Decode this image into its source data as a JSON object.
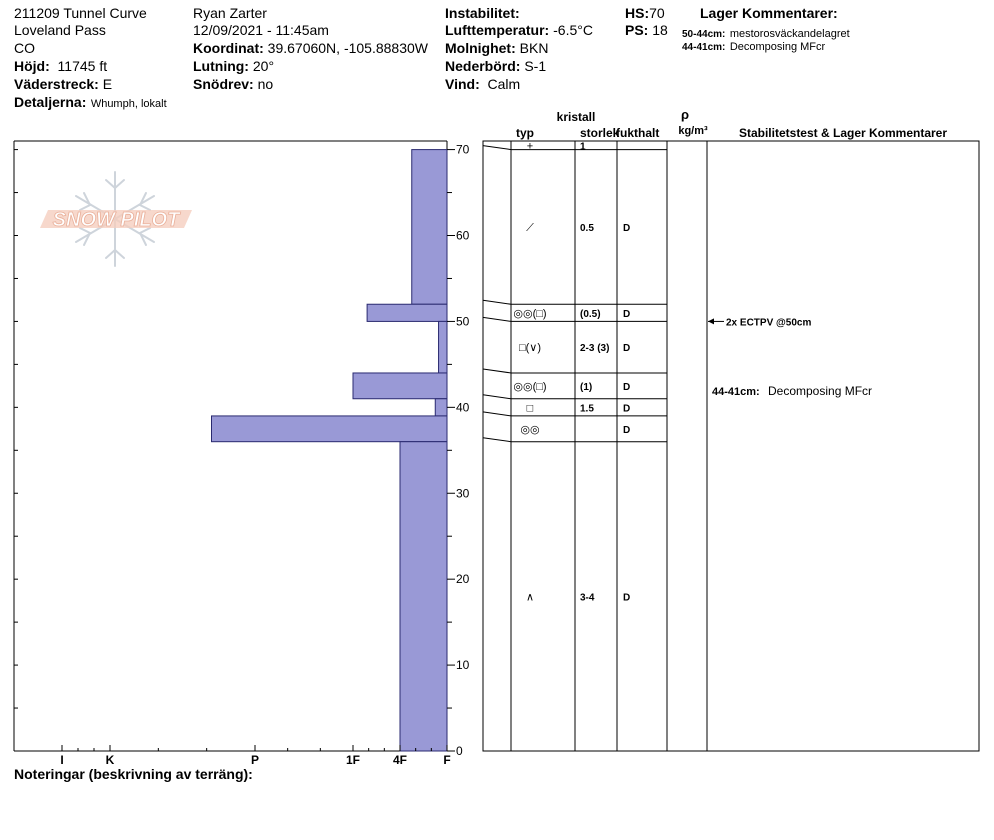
{
  "header": {
    "col1": {
      "site": "211209 Tunnel Curve",
      "area": "Loveland Pass",
      "state": "CO",
      "elevation_label": "Höjd:",
      "elevation_value": "11745 ft",
      "aspect_label": "Väderstreck:",
      "aspect_value": "E",
      "details_label": "Detaljerna:",
      "details_value": "Whumph, lokalt"
    },
    "col2": {
      "observer": "Ryan Zarter",
      "datetime": "12/09/2021 - 11:45am",
      "coord_label": "Koordinat:",
      "coord_value": "39.67060N, -105.88830W",
      "slope_label": "Lutning:",
      "slope_value": "20°",
      "drift_label": "Snödrev:",
      "drift_value": "no"
    },
    "col3": {
      "instability_label": "Instabilitet:",
      "instability_value": "",
      "airtemp_label": "Lufttemperatur:",
      "airtemp_value": "-6.5°C",
      "sky_label": "Molnighet:",
      "sky_value": "BKN",
      "precip_label": "Nederbörd:",
      "precip_value": "S-1",
      "wind_label": "Vind:",
      "wind_value": "Calm"
    },
    "col4": {
      "hs_label": "HS:",
      "hs_value": "70",
      "ps_label": "PS:",
      "ps_value": "18"
    },
    "layer_comments": {
      "title": "Lager Kommentarer:",
      "items": [
        {
          "range": "50-44cm:",
          "text": "mestorosväckandelagret"
        },
        {
          "range": "44-41cm:",
          "text": "Decomposing MFcr"
        }
      ]
    }
  },
  "logo_text": "SNOW PILOT",
  "table": {
    "headers": {
      "kristall": "kristall",
      "typ": "typ",
      "storlek": "storlek",
      "fukthalt": "fukthalt",
      "rho": "ρ",
      "density_unit": "kg/m³",
      "stability": "Stabilitetstest & Lager Kommentarer"
    }
  },
  "notes_label": "Noteringar (beskrivning av terräng):",
  "chart_data": {
    "type": "bar",
    "orientation": "horizontal",
    "title": "",
    "ylabel": "",
    "y_unit": "cm",
    "ylim": [
      0,
      70
    ],
    "y_ticks": [
      0,
      10,
      20,
      30,
      40,
      50,
      60,
      70
    ],
    "hardness_scale": [
      "F",
      "4F",
      "1F",
      "P",
      "K",
      "I"
    ],
    "x_ticks": [
      {
        "label": "I",
        "value": 5
      },
      {
        "label": "K",
        "value": 4
      },
      {
        "label": "P",
        "value": 3
      },
      {
        "label": "1F",
        "value": 2
      },
      {
        "label": "4F",
        "value": 1
      },
      {
        "label": "F",
        "value": 0
      }
    ],
    "bar_color": "#9999d6",
    "layers": [
      {
        "top": 70,
        "bottom": 52,
        "hardness": 0.75,
        "grain": "PP-DF",
        "size": "0.5",
        "moisture": "D"
      },
      {
        "top": 52,
        "bottom": 50,
        "hardness": 1.7,
        "grain": "RG-FC",
        "size": "(0.5)",
        "moisture": "D"
      },
      {
        "top": 50,
        "bottom": 44,
        "hardness": 0.18,
        "grain": "FC-DH",
        "size": "2-3 (3)",
        "moisture": "D"
      },
      {
        "top": 44,
        "bottom": 41,
        "hardness": 2.0,
        "grain": "RG-FC",
        "size": "(1)",
        "moisture": "D"
      },
      {
        "top": 41,
        "bottom": 39,
        "hardness": 0.25,
        "grain": "FC",
        "size": "1.5",
        "moisture": "D"
      },
      {
        "top": 39,
        "bottom": 36,
        "hardness": 3.3,
        "grain": "RG",
        "size": "",
        "moisture": "D"
      },
      {
        "top": 36,
        "bottom": 0,
        "hardness": 1.0,
        "grain": "DH",
        "size": "3-4",
        "moisture": "D"
      }
    ],
    "surface_layer": {
      "top": 71,
      "bottom": 70,
      "grain": "PP",
      "size": "1"
    },
    "tests": [
      {
        "depth": 50,
        "label": "2x ECTPV @50cm"
      }
    ],
    "layer_notes": [
      {
        "depth": 42,
        "range": "44-41cm:",
        "text": "Decomposing MFcr"
      }
    ],
    "layer_cells": [
      {
        "y_top": 71,
        "y_bot": 70,
        "grain_text": "+",
        "size": "1",
        "moist": ""
      },
      {
        "y_top": 70,
        "y_bot": 52,
        "grain_text": "⟋",
        "size": "0.5",
        "moist": "D"
      },
      {
        "y_top": 52,
        "y_bot": 50,
        "grain_text": "◎◎(□)",
        "size": "(0.5)",
        "moist": "D"
      },
      {
        "y_top": 50,
        "y_bot": 44,
        "grain_text": "□(∨)",
        "size": "2-3 (3)",
        "moist": "D"
      },
      {
        "y_top": 44,
        "y_bot": 41,
        "grain_text": "◎◎(□)",
        "size": "(1)",
        "moist": "D"
      },
      {
        "y_top": 41,
        "y_bot": 39,
        "grain_text": "□",
        "size": "1.5",
        "moist": "D"
      },
      {
        "y_top": 39,
        "y_bot": 36,
        "grain_text": "◎◎",
        "size": "",
        "moist": "D"
      },
      {
        "y_top": 36,
        "y_bot": 0,
        "grain_text": "∧",
        "size": "3-4",
        "moist": "D"
      }
    ]
  }
}
